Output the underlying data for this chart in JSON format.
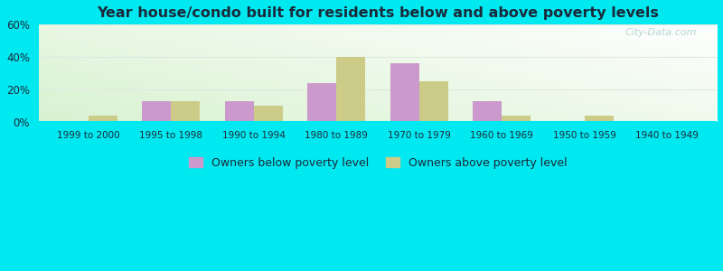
{
  "title": "Year house/condo built for residents below and above poverty levels",
  "categories": [
    "1999 to 2000",
    "1995 to 1998",
    "1990 to 1994",
    "1980 to 1989",
    "1970 to 1979",
    "1960 to 1969",
    "1950 to 1959",
    "1940 to 1949"
  ],
  "below_poverty": [
    0,
    13,
    13,
    24,
    36,
    13,
    0,
    0
  ],
  "above_poverty": [
    4,
    13,
    10,
    40,
    25,
    4,
    4,
    1
  ],
  "below_color": "#cc99cc",
  "above_color": "#cccc88",
  "ylim": [
    0,
    60
  ],
  "yticks": [
    0,
    20,
    40,
    60
  ],
  "ytick_labels": [
    "0%",
    "20%",
    "40%",
    "60%"
  ],
  "legend_below": "Owners below poverty level",
  "legend_above": "Owners above poverty level",
  "bg_outer": "#00e8f0",
  "bar_width": 0.35,
  "title_color": "#1a2a3a",
  "tick_color": "#1a2a3a",
  "legend_color": "#1a2a3a",
  "watermark": "City-Data.com",
  "grid_color": "#e0e8e0"
}
